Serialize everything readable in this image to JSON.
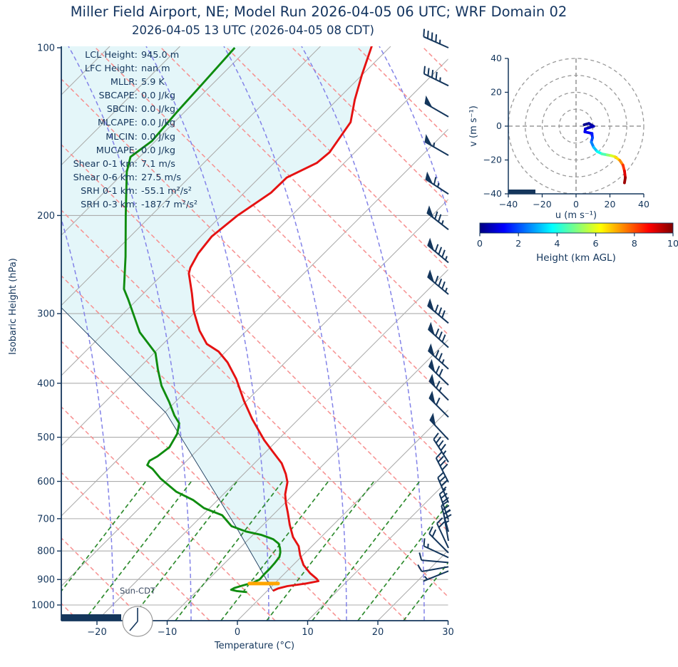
{
  "title": "Miller Field Airport, NE; Model Run 2026-04-05 06 UTC; WRF Domain 02",
  "subtitle": "2026-04-05 13 UTC  (2026-04-05 08 CDT)",
  "sun_label": "Sun-CDT",
  "skewt": {
    "xlabel": "Temperature (°C)",
    "ylabel": "Isobaric Height (hPa)",
    "pressure_ticks": [
      100,
      200,
      300,
      400,
      500,
      600,
      700,
      800,
      900,
      1000
    ],
    "temp_ticks": [
      -20,
      -10,
      0,
      10,
      20,
      30
    ],
    "temp_range_c": [
      -25,
      30
    ],
    "pressure_range_hpa": [
      100,
      1070
    ]
  },
  "hodograph": {
    "xlabel": "u (m s⁻¹)",
    "ylabel": "v (m s⁻¹)",
    "u_ticks": [
      -40,
      -20,
      0,
      20,
      40
    ],
    "v_ticks": [
      -40,
      -20,
      0,
      20,
      40
    ],
    "rings_ms": [
      10,
      20,
      30,
      40
    ]
  },
  "colorbar": {
    "label": "Height (km AGL)",
    "ticks": [
      0,
      2,
      4,
      6,
      8,
      10
    ],
    "colormap": "jet",
    "range_km": [
      0,
      10
    ]
  },
  "indices": [
    {
      "label": "LCL Height",
      "value": "945.0 m"
    },
    {
      "label": "LFC Height",
      "value": "nan m"
    },
    {
      "label": "MLLR",
      "value": "5.9 K"
    },
    {
      "label": "SBCAPE",
      "value": "0.0 J/kg"
    },
    {
      "label": "SBCIN",
      "value": "0.0 J/kg"
    },
    {
      "label": "MLCAPE",
      "value": "0.0 J/kg"
    },
    {
      "label": "MLCIN",
      "value": "0.0 J/kg"
    },
    {
      "label": "MUCAPE",
      "value": "0.0 J/kg"
    },
    {
      "label": "Shear 0-1 km",
      "value": "7.1 m/s"
    },
    {
      "label": "Shear 0-6 km",
      "value": "27.5 m/s"
    },
    {
      "label": "SRH 0-1 km",
      "value": "-55.1 m²/s²"
    },
    {
      "label": "SRH 0-3 km",
      "value": "-187.7 m²/s²"
    }
  ],
  "colors": {
    "navy": "#14365c",
    "temperature": "#e51212",
    "dewpoint": "#0f8c0f",
    "parcel": "#1a3a5c",
    "shading": "#e4f6f9",
    "isotherm": "#adadad",
    "dry_adiabat": "#f79090",
    "moist_adiabat": "#8383e8",
    "mixing_ratio": "#2e8b2e",
    "lcl_marker": "#ffa500",
    "hodo_grid": "#999999"
  },
  "chart_data": {
    "type": "skewt_log_p_sounding",
    "temperature_profile": {
      "units": {
        "pressure": "hPa",
        "temperature": "degC"
      },
      "points": [
        [
          99,
          -62.8
        ],
        [
          112,
          -60.0
        ],
        [
          124,
          -57.5
        ],
        [
          136,
          -54.9
        ],
        [
          154,
          -53.6
        ],
        [
          161,
          -53.9
        ],
        [
          171,
          -56.1
        ],
        [
          182,
          -56.2
        ],
        [
          200,
          -57.7
        ],
        [
          218,
          -58.4
        ],
        [
          234,
          -57.9
        ],
        [
          248,
          -57.0
        ],
        [
          254,
          -56.4
        ],
        [
          276,
          -53.1
        ],
        [
          297,
          -50.3
        ],
        [
          322,
          -46.7
        ],
        [
          340,
          -43.8
        ],
        [
          351,
          -41.0
        ],
        [
          367,
          -38.2
        ],
        [
          393,
          -34.6
        ],
        [
          430,
          -30.4
        ],
        [
          464,
          -26.6
        ],
        [
          506,
          -21.9
        ],
        [
          531,
          -19.0
        ],
        [
          557,
          -16.1
        ],
        [
          582,
          -14.0
        ],
        [
          602,
          -12.6
        ],
        [
          633,
          -11.2
        ],
        [
          657,
          -9.8
        ],
        [
          683,
          -8.2
        ],
        [
          718,
          -6.2
        ],
        [
          755,
          -4.0
        ],
        [
          784,
          -1.9
        ],
        [
          814,
          -0.4
        ],
        [
          848,
          1.5
        ],
        [
          877,
          3.6
        ],
        [
          897,
          5.3
        ],
        [
          906,
          5.9
        ],
        [
          915,
          4.5
        ],
        [
          925,
          2.2
        ],
        [
          934,
          1.2
        ],
        [
          943,
          0.8
        ]
      ]
    },
    "dewpoint_profile": {
      "units": {
        "pressure": "hPa",
        "temperature": "degC"
      },
      "points": [
        [
          100,
          -82.0
        ],
        [
          118,
          -81.4
        ],
        [
          130,
          -81.1
        ],
        [
          147,
          -80.5
        ],
        [
          157,
          -81.3
        ],
        [
          167,
          -79.7
        ],
        [
          199,
          -73.8
        ],
        [
          237,
          -67.8
        ],
        [
          271,
          -63.4
        ],
        [
          283,
          -61.3
        ],
        [
          324,
          -55.0
        ],
        [
          353,
          -49.8
        ],
        [
          378,
          -47.1
        ],
        [
          404,
          -44.3
        ],
        [
          432,
          -40.9
        ],
        [
          457,
          -38.2
        ],
        [
          472,
          -36.4
        ],
        [
          493,
          -35.2
        ],
        [
          521,
          -34.4
        ],
        [
          541,
          -34.8
        ],
        [
          551,
          -35.3
        ],
        [
          561,
          -35.0
        ],
        [
          570,
          -33.7
        ],
        [
          593,
          -31.2
        ],
        [
          626,
          -27.1
        ],
        [
          648,
          -23.5
        ],
        [
          670,
          -20.8
        ],
        [
          690,
          -17.2
        ],
        [
          722,
          -14.3
        ],
        [
          738,
          -11.5
        ],
        [
          748,
          -8.9
        ],
        [
          762,
          -6.5
        ],
        [
          776,
          -5.1
        ],
        [
          790,
          -4.3
        ],
        [
          805,
          -3.6
        ],
        [
          820,
          -3.1
        ],
        [
          840,
          -2.9
        ],
        [
          860,
          -2.8
        ],
        [
          880,
          -2.8
        ],
        [
          900,
          -2.7
        ],
        [
          912,
          -3.2
        ],
        [
          922,
          -4.2
        ],
        [
          932,
          -5.1
        ],
        [
          939,
          -5.3
        ],
        [
          944,
          -4.3
        ],
        [
          948,
          -2.7
        ]
      ]
    },
    "parcel_path": {
      "units": {
        "pressure": "hPa",
        "temperature": "degC"
      },
      "points": [
        [
          943,
          0.8
        ],
        [
          730,
          -13.1
        ],
        [
          452,
          -39.8
        ],
        [
          290,
          -70.3
        ]
      ]
    },
    "lcl_marker": {
      "pressure_hpa": 915,
      "temp_c_from": -3.6,
      "temp_c_to": 0.5
    },
    "wind_barbs": {
      "format": [
        "pressure_hpa",
        "staff_angle_deg_from_vertical",
        "pennants",
        "full_barbs",
        "half_barbs"
      ],
      "levels": [
        [
          100,
          -66,
          0,
          4,
          1
        ],
        [
          117,
          -64,
          0,
          4,
          1
        ],
        [
          133,
          -60,
          1,
          0,
          0
        ],
        [
          156,
          -60,
          1,
          0,
          1
        ],
        [
          183,
          -57,
          1,
          1,
          1
        ],
        [
          212,
          -52,
          1,
          2,
          1
        ],
        [
          243,
          -50,
          1,
          3,
          1
        ],
        [
          277,
          -50,
          1,
          3,
          1
        ],
        [
          312,
          -50,
          1,
          3,
          0
        ],
        [
          345,
          -48,
          1,
          3,
          0
        ],
        [
          377,
          -48,
          1,
          2,
          1
        ],
        [
          403,
          -46,
          1,
          2,
          0
        ],
        [
          429,
          -45,
          1,
          1,
          1
        ],
        [
          460,
          -45,
          1,
          1,
          0
        ],
        [
          505,
          -43,
          1,
          0,
          0
        ],
        [
          554,
          -33,
          0,
          4,
          1
        ],
        [
          602,
          -27,
          0,
          4,
          0
        ],
        [
          655,
          -23,
          0,
          3,
          1
        ],
        [
          703,
          -19,
          0,
          3,
          0
        ],
        [
          739,
          -15,
          0,
          3,
          0
        ],
        [
          767,
          -10,
          0,
          2,
          1
        ],
        [
          790,
          -25,
          0,
          2,
          0
        ],
        [
          806,
          -45,
          0,
          2,
          0
        ],
        [
          822,
          -65,
          0,
          1,
          1
        ],
        [
          839,
          -85,
          0,
          1,
          0
        ],
        [
          854,
          -100,
          0,
          1,
          0
        ],
        [
          869,
          -112,
          0,
          0,
          1
        ]
      ]
    },
    "hodograph_trace": {
      "units": {
        "u": "m s-1",
        "v": "m s-1",
        "height": "km AGL"
      },
      "u": [
        4.8,
        7.6,
        10.4,
        5.5,
        5.2,
        9.4,
        9.7,
        9.0,
        10.4,
        12.5,
        15.3,
        18.4,
        20.6,
        23.0,
        25.8,
        27.7,
        28.6,
        29.1,
        28.6
      ],
      "v": [
        0.8,
        1.6,
        -0.1,
        -1.6,
        -3.4,
        -4.3,
        -6.9,
        -9.4,
        -12.5,
        -15.0,
        -16.4,
        -17.0,
        -17.4,
        -18.1,
        -20.2,
        -23.0,
        -26.5,
        -30.4,
        -33.5
      ],
      "height_km": [
        0,
        0.2,
        0.4,
        0.7,
        1.0,
        1.3,
        1.7,
        2.2,
        2.8,
        3.5,
        4.2,
        4.8,
        5.5,
        6.2,
        7.0,
        7.8,
        8.7,
        9.4,
        10
      ]
    }
  }
}
